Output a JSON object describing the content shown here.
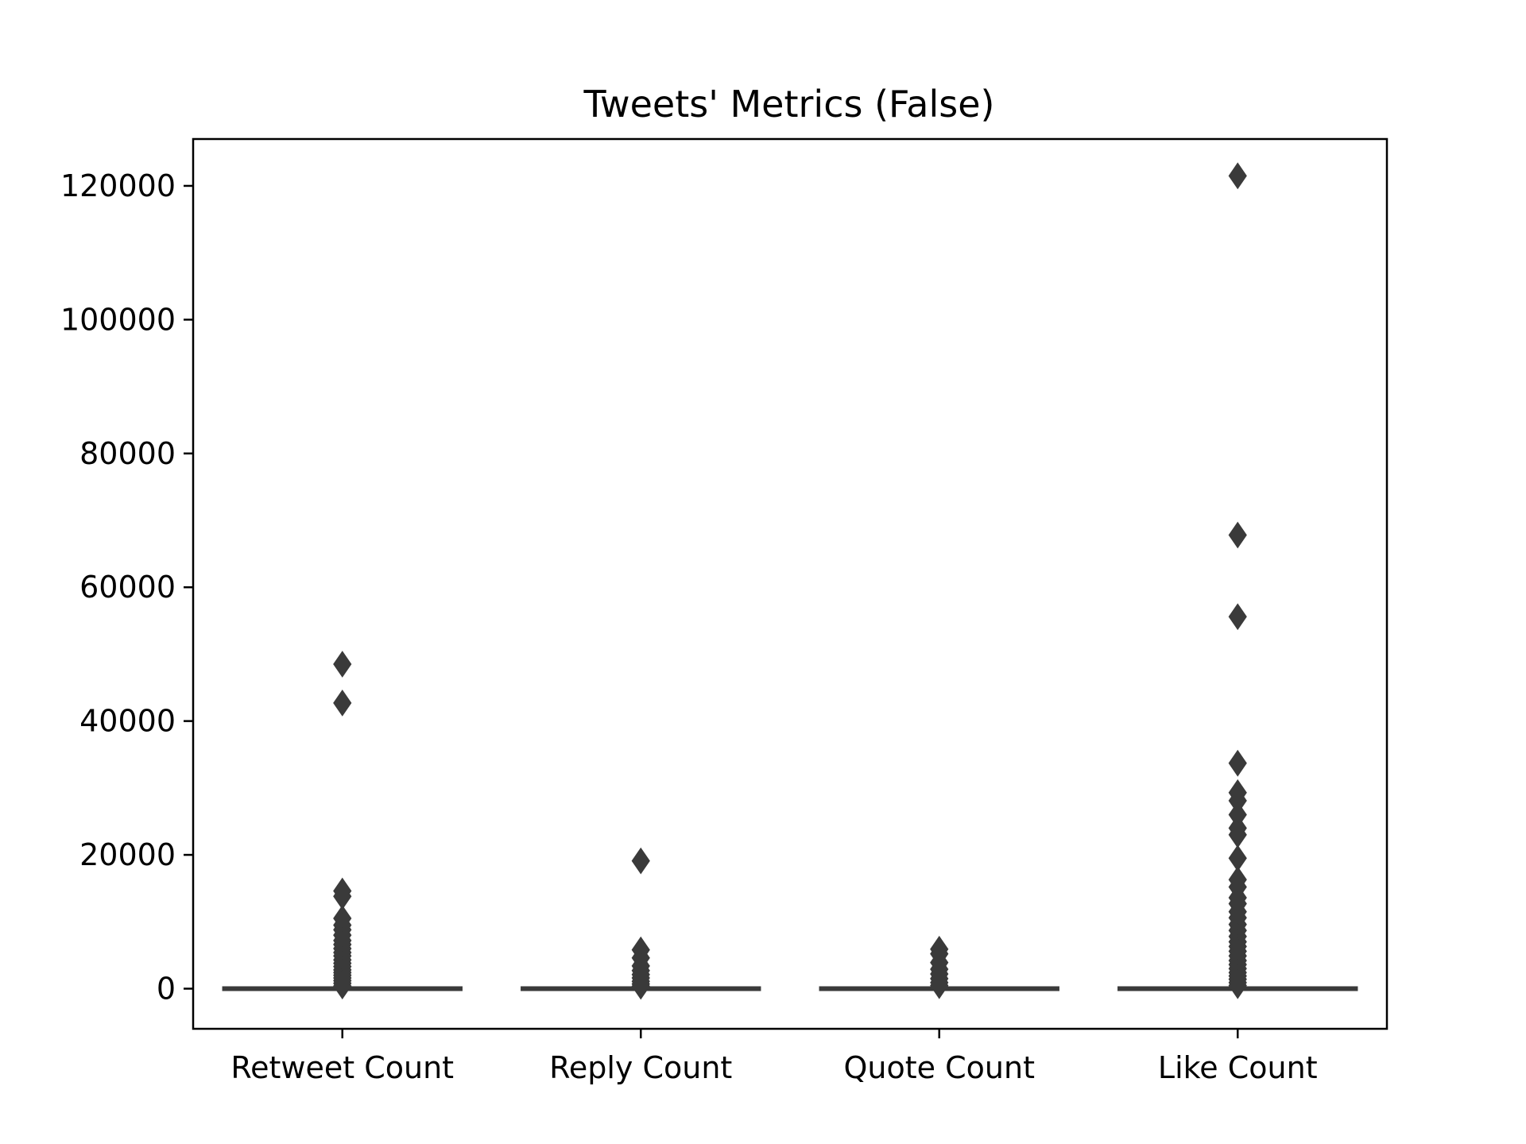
{
  "chart_data": {
    "type": "box",
    "title": "Tweets' Metrics (False)",
    "xlabel": "",
    "ylabel": "",
    "ylim": [
      -6000,
      127000
    ],
    "yticks": [
      0,
      20000,
      40000,
      60000,
      80000,
      100000,
      120000
    ],
    "ytick_labels": [
      "0",
      "20000",
      "40000",
      "60000",
      "80000",
      "100000",
      "120000"
    ],
    "categories": [
      "Retweet Count",
      "Reply Count",
      "Quote Count",
      "Like Count"
    ],
    "grid": false,
    "legend": "none",
    "box_color": "#3a3a3a",
    "boxes": [
      {
        "median": 0,
        "q1": 0,
        "q3": 0,
        "whisker_low": 0,
        "whisker_high": 0,
        "outliers": [
          48500,
          42700,
          14600,
          13800,
          10500,
          9500,
          8800,
          8000,
          7200,
          6600,
          6000,
          5400,
          4900,
          4300,
          3800,
          3300,
          2800,
          2400,
          2000,
          1600,
          1200,
          800,
          400
        ]
      },
      {
        "median": 0,
        "q1": 0,
        "q3": 0,
        "whisker_low": 0,
        "whisker_high": 0,
        "outliers": [
          19100,
          5800,
          4600,
          3400,
          2700,
          2100,
          1600,
          1100,
          700,
          350
        ]
      },
      {
        "median": 0,
        "q1": 0,
        "q3": 0,
        "whisker_low": 0,
        "whisker_high": 0,
        "outliers": [
          5900,
          5200,
          3900,
          2900,
          2200,
          1500,
          900,
          450
        ]
      },
      {
        "median": 0,
        "q1": 0,
        "q3": 0,
        "whisker_low": 0,
        "whisker_high": 0,
        "outliers": [
          121500,
          67800,
          55600,
          33700,
          29300,
          28100,
          26000,
          24000,
          23000,
          19500,
          16300,
          15200,
          13600,
          12700,
          11500,
          10600,
          9600,
          8700,
          7800,
          7000,
          6300,
          5600,
          4900,
          4200,
          3600,
          3000,
          2400,
          1900,
          1400,
          900,
          450
        ]
      }
    ]
  }
}
